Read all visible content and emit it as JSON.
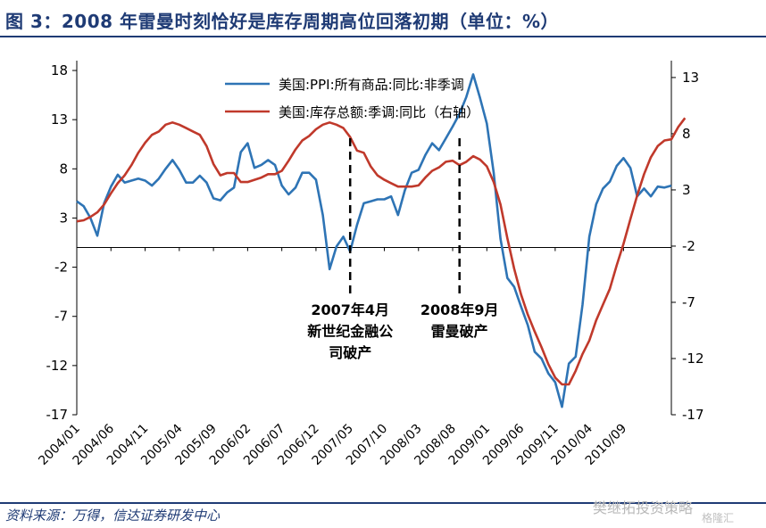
{
  "header": {
    "title": "图 3：2008 年雷曼时刻恰好是库存周期高位回落初期（单位：%）",
    "source": "资料来源：万得，信达证券研发中心",
    "watermark": "樊继拓投资策略",
    "watermark2": "格隆汇"
  },
  "chart_data": {
    "type": "line",
    "x_tick_labels": [
      "2004/01",
      "2004/06",
      "2004/11",
      "2005/04",
      "2005/09",
      "2006/02",
      "2006/07",
      "2006/12",
      "2007/05",
      "2007/10",
      "2008/03",
      "2008/08",
      "2009/01",
      "2009/06",
      "2009/11",
      "2010/04",
      "2010/09"
    ],
    "left_axis": {
      "ticks": [
        "18",
        "13",
        "8",
        "3",
        "-2",
        "-7",
        "-12",
        "-17"
      ],
      "ylim": [
        -17,
        19
      ]
    },
    "right_axis": {
      "ticks": [
        "13",
        "8",
        "3",
        "-2",
        "-7",
        "-12",
        "-17"
      ],
      "ylim": [
        -17,
        14.5
      ]
    },
    "series": [
      {
        "name": "美国:PPI:所有商品:同比:非季调",
        "axis": "left",
        "color": "#2e74b5",
        "values": [
          4.7,
          4.2,
          3.0,
          1.2,
          4.5,
          6.2,
          7.4,
          6.6,
          6.8,
          7.0,
          6.8,
          6.3,
          7.0,
          8.0,
          8.9,
          7.9,
          6.6,
          6.6,
          7.3,
          6.6,
          5.0,
          4.8,
          5.6,
          6.1,
          9.7,
          10.6,
          8.1,
          8.4,
          8.9,
          8.4,
          6.3,
          5.4,
          6.1,
          7.6,
          7.6,
          6.9,
          3.3,
          -2.2,
          0.1,
          1.1,
          -0.4,
          2.3,
          4.5,
          4.7,
          4.9,
          4.9,
          5.2,
          3.3,
          5.8,
          7.6,
          7.9,
          9.4,
          10.6,
          9.9,
          11.1,
          12.3,
          13.6,
          15.3,
          17.6,
          15.2,
          12.6,
          7.6,
          0.9,
          -3.1,
          -4.0,
          -6.0,
          -7.9,
          -10.6,
          -11.3,
          -12.8,
          -13.7,
          -16.2,
          -11.8,
          -11.1,
          -5.8,
          1.1,
          4.4,
          6.0,
          6.7,
          8.3,
          9.1,
          8.1,
          5.2,
          6.0,
          5.2,
          6.2,
          6.1,
          6.3
        ]
      },
      {
        "name": "美国:库存总额:季调:同比（右轴）",
        "axis": "right",
        "color": "#c0392b",
        "values": [
          0.2,
          0.3,
          0.6,
          1.0,
          1.7,
          2.7,
          3.6,
          4.3,
          5.2,
          6.3,
          7.2,
          7.9,
          8.2,
          8.8,
          9.0,
          8.8,
          8.5,
          8.2,
          7.9,
          6.9,
          5.3,
          4.3,
          4.5,
          4.5,
          3.7,
          3.7,
          3.9,
          4.1,
          4.4,
          4.4,
          4.7,
          5.6,
          6.6,
          7.4,
          7.8,
          8.4,
          8.8,
          9.0,
          8.8,
          8.5,
          7.7,
          6.5,
          6.3,
          5.1,
          4.3,
          3.9,
          3.6,
          3.3,
          3.3,
          3.3,
          3.4,
          4.1,
          4.7,
          5.0,
          5.5,
          5.6,
          5.2,
          5.5,
          6.0,
          5.7,
          5.1,
          3.7,
          1.7,
          -1.3,
          -4.0,
          -6.3,
          -8.1,
          -9.6,
          -11.0,
          -12.5,
          -13.7,
          -14.3,
          -14.3,
          -13.1,
          -11.6,
          -10.4,
          -8.6,
          -7.2,
          -5.8,
          -3.7,
          -1.8,
          0.4,
          2.5,
          4.4,
          5.9,
          6.9,
          7.4,
          7.5,
          8.6,
          9.4
        ]
      }
    ],
    "annotations": [
      {
        "index": 40,
        "lines": [
          "2007年4月",
          "新世纪金融公",
          "司破产"
        ]
      },
      {
        "index": 56,
        "lines": [
          "2008年9月",
          "雷曼破产"
        ]
      }
    ],
    "grid": false,
    "legend": "top-center"
  }
}
